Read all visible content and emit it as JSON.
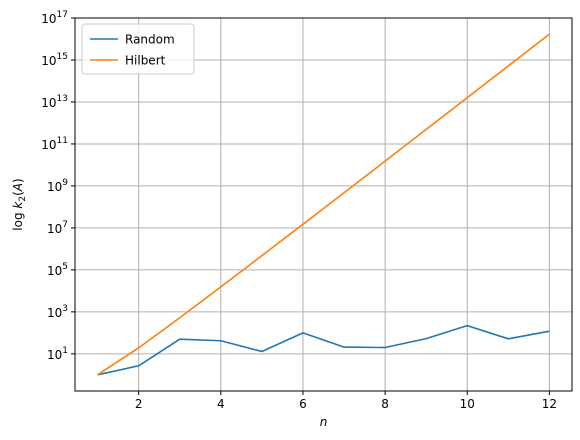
{
  "chart_data": {
    "type": "line",
    "title": "",
    "xlabel": "n",
    "ylabel": "log k2(A)",
    "xlim": [
      0.45,
      12.55
    ],
    "ylim_log10": [
      -0.77,
      17
    ],
    "yscale": "log",
    "grid": true,
    "legend_position": "top-left",
    "x": [
      1,
      2,
      3,
      4,
      5,
      6,
      7,
      8,
      9,
      10,
      11,
      12
    ],
    "x_ticks": [
      2,
      4,
      6,
      8,
      10,
      12
    ],
    "x_tick_labels": [
      "2",
      "4",
      "6",
      "8",
      "10",
      "12"
    ],
    "y_tick_exponents": [
      1,
      3,
      5,
      7,
      9,
      11,
      13,
      15,
      17
    ],
    "y_tick_base": "10",
    "series": [
      {
        "name": "Random",
        "color": "#1f77b4",
        "values": [
          1.0,
          2.7,
          50,
          42,
          13,
          100,
          21,
          20,
          53,
          220,
          52,
          120
        ]
      },
      {
        "name": "Hilbert",
        "color": "#ff7f0e",
        "values": [
          1.0,
          19.3,
          524,
          15514,
          476607,
          14951000,
          475367000,
          15257600000,
          493154000000,
          16024100000000,
          522568000000000,
          17000000000000000
        ]
      }
    ]
  }
}
